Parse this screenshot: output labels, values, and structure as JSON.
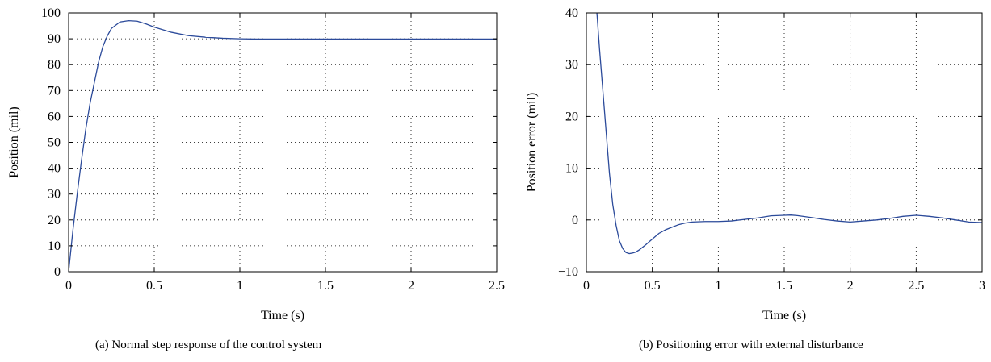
{
  "chart_data": [
    {
      "type": "line",
      "caption": "(a)  Normal step response of the control system",
      "xlabel": "Time (s)",
      "ylabel": "Position (mil)",
      "xlim": [
        0,
        2.5
      ],
      "ylim": [
        0,
        100
      ],
      "xticks": [
        0,
        0.5,
        1,
        1.5,
        2,
        2.5
      ],
      "xtick_labels": [
        "0",
        "0.5",
        "1",
        "1.5",
        "2",
        "2.5"
      ],
      "yticks": [
        0,
        10,
        20,
        30,
        40,
        50,
        60,
        70,
        80,
        90,
        100
      ],
      "ytick_labels": [
        "0",
        "10",
        "20",
        "30",
        "40",
        "50",
        "60",
        "70",
        "80",
        "90",
        "100"
      ],
      "grid": true,
      "line_color": "#2b4a9a",
      "series": [
        {
          "x": [
            0,
            0.025,
            0.05,
            0.075,
            0.1,
            0.125,
            0.15,
            0.175,
            0.2,
            0.225,
            0.25,
            0.3,
            0.35,
            0.4,
            0.45,
            0.5,
            0.55,
            0.6,
            0.7,
            0.8,
            0.9,
            1.0,
            1.1,
            1.2,
            1.5,
            2.0,
            2.5
          ],
          "y": [
            0,
            16,
            30,
            43,
            55,
            65,
            73,
            81,
            87,
            91,
            94,
            96.5,
            97,
            96.8,
            95.8,
            94.5,
            93.5,
            92.5,
            91.2,
            90.6,
            90.2,
            90.0,
            89.9,
            89.9,
            89.9,
            89.9,
            89.9
          ]
        }
      ]
    },
    {
      "type": "line",
      "caption": "(b)  Positioning error with external disturbance",
      "xlabel": "Time (s)",
      "ylabel": "Position error (mil)",
      "xlim": [
        0,
        3
      ],
      "ylim": [
        -10,
        40
      ],
      "xticks": [
        0,
        0.5,
        1,
        1.5,
        2,
        2.5,
        3
      ],
      "xtick_labels": [
        "0",
        "0.5",
        "1",
        "1.5",
        "2",
        "2.5",
        "3"
      ],
      "yticks": [
        -10,
        0,
        10,
        20,
        30,
        40
      ],
      "ytick_labels": [
        "−10",
        "0",
        "10",
        "20",
        "30",
        "40"
      ],
      "grid": true,
      "line_color": "#2b4a9a",
      "series": [
        {
          "x": [
            0.08,
            0.1,
            0.125,
            0.15,
            0.175,
            0.2,
            0.225,
            0.25,
            0.275,
            0.3,
            0.325,
            0.35,
            0.375,
            0.4,
            0.45,
            0.5,
            0.55,
            0.6,
            0.65,
            0.7,
            0.75,
            0.8,
            0.9,
            1.0,
            1.1,
            1.2,
            1.3,
            1.4,
            1.5,
            1.55,
            1.6,
            1.7,
            1.8,
            1.9,
            2.0,
            2.1,
            2.2,
            2.3,
            2.4,
            2.5,
            2.6,
            2.7,
            2.8,
            2.9,
            3.0
          ],
          "y": [
            40,
            33,
            25,
            17,
            9,
            3,
            -1,
            -4,
            -5.5,
            -6.3,
            -6.5,
            -6.4,
            -6.2,
            -5.8,
            -4.8,
            -3.7,
            -2.6,
            -1.9,
            -1.4,
            -0.9,
            -0.6,
            -0.4,
            -0.3,
            -0.3,
            -0.2,
            0.1,
            0.4,
            0.8,
            0.9,
            0.95,
            0.85,
            0.5,
            0.1,
            -0.2,
            -0.4,
            -0.2,
            0.0,
            0.3,
            0.7,
            0.9,
            0.7,
            0.4,
            0.0,
            -0.4,
            -0.5
          ]
        }
      ]
    }
  ]
}
